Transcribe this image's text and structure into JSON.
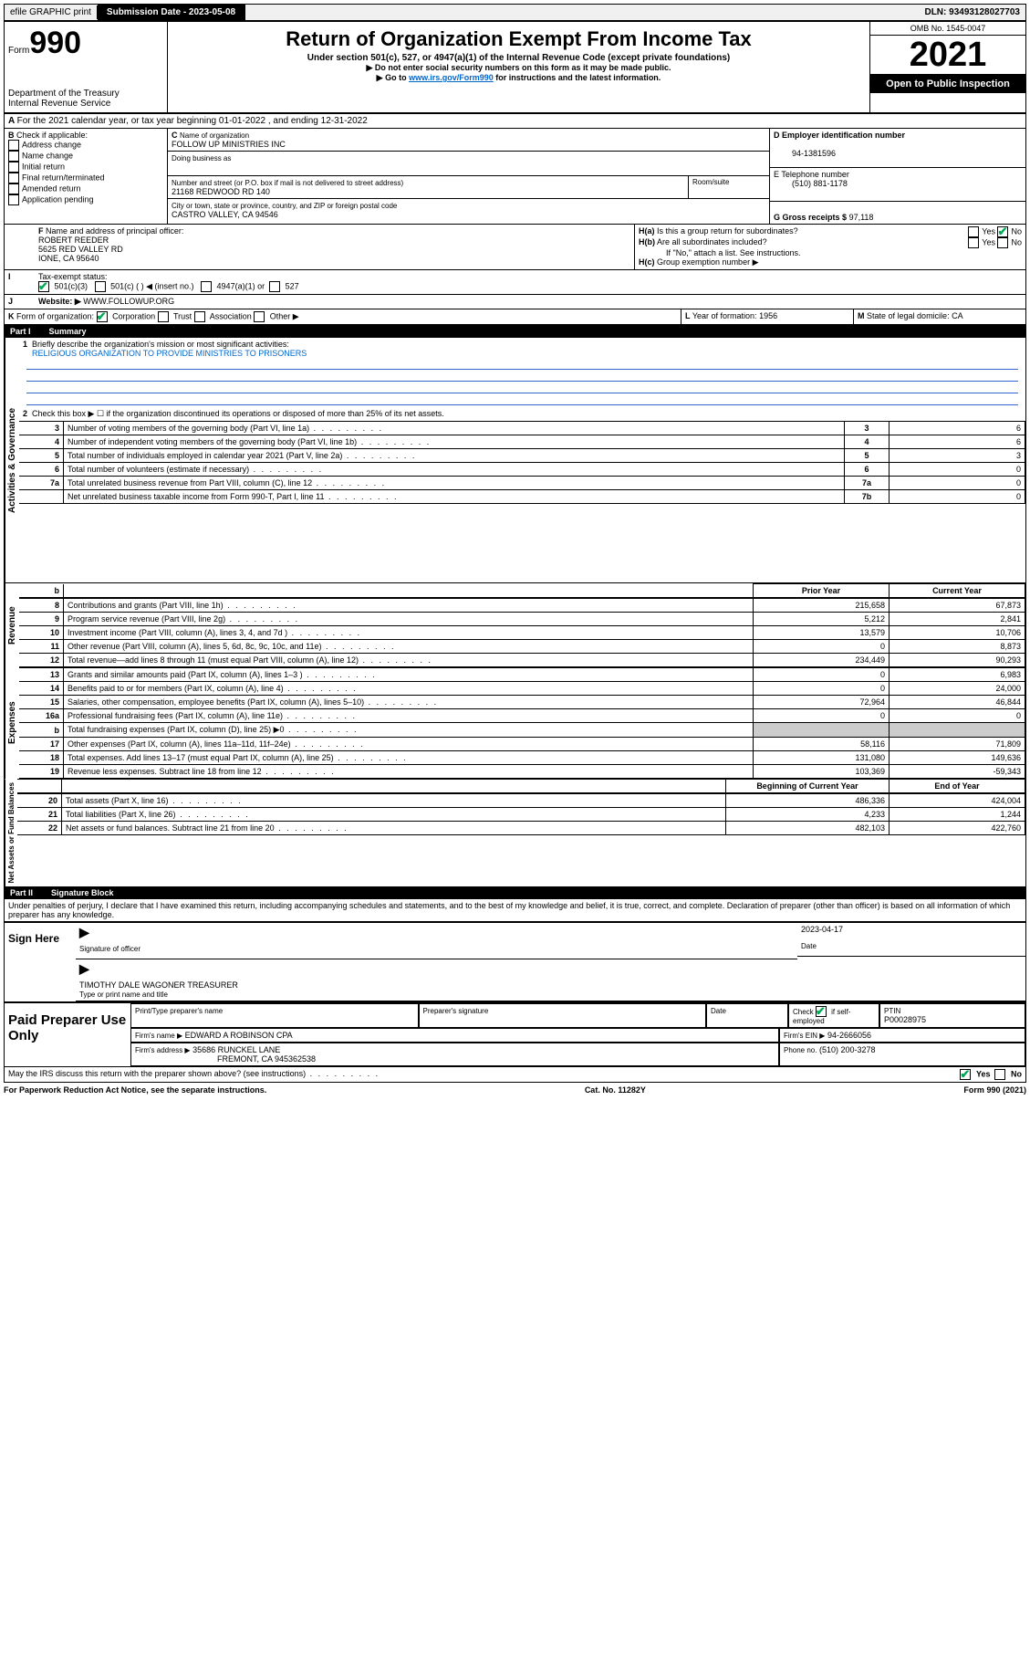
{
  "topbar": {
    "efile": "efile GRAPHIC print",
    "submission_label": "Submission Date - 2023-05-08",
    "dln": "DLN: 93493128027703"
  },
  "header": {
    "form_label": "Form",
    "form_num": "990",
    "dept": "Department of the Treasury",
    "irs": "Internal Revenue Service",
    "title": "Return of Organization Exempt From Income Tax",
    "subtitle": "Under section 501(c), 527, or 4947(a)(1) of the Internal Revenue Code (except private foundations)",
    "note1": "▶ Do not enter social security numbers on this form as it may be made public.",
    "note2_pre": "▶ Go to ",
    "note2_link": "www.irs.gov/Form990",
    "note2_post": " for instructions and the latest information.",
    "omb": "OMB No. 1545-0047",
    "year": "2021",
    "open": "Open to Public Inspection"
  },
  "lineA": "For the 2021 calendar year, or tax year beginning 01-01-2022 , and ending 12-31-2022",
  "boxB": {
    "label": "Check if applicable:",
    "opts": [
      "Address change",
      "Name change",
      "Initial return",
      "Final return/terminated",
      "Amended return",
      "Application pending"
    ]
  },
  "boxC": {
    "name_label": "Name of organization",
    "name": "FOLLOW UP MINISTRIES INC",
    "dba_label": "Doing business as",
    "street_label": "Number and street (or P.O. box if mail is not delivered to street address)",
    "room_label": "Room/suite",
    "street": "21168 REDWOOD RD 140",
    "city_label": "City or town, state or province, country, and ZIP or foreign postal code",
    "city": "CASTRO VALLEY, CA  94546"
  },
  "boxD": {
    "label": "Employer identification number",
    "val": "94-1381596"
  },
  "boxE": {
    "label": "E Telephone number",
    "val": "(510) 881-1178"
  },
  "boxG": {
    "label": "G Gross receipts $",
    "val": "97,118"
  },
  "boxF": {
    "label": "Name and address of principal officer:",
    "l1": "ROBERT REEDER",
    "l2": "5625 RED VALLEY RD",
    "l3": "IONE, CA  95640"
  },
  "boxH": {
    "ha": "Is this a group return for subordinates?",
    "hb": "Are all subordinates included?",
    "hnote": "If \"No,\" attach a list. See instructions.",
    "hc": "Group exemption number ▶"
  },
  "taxI": {
    "label": "Tax-exempt status:",
    "o1": "501(c)(3)",
    "o2": "501(c) (  ) ◀ (insert no.)",
    "o3": "4947(a)(1) or",
    "o4": "527"
  },
  "siteJ": {
    "label": "Website: ▶",
    "val": "WWW.FOLLOWUP.ORG"
  },
  "lineK": {
    "label": "Form of organization:",
    "o1": "Corporation",
    "o2": "Trust",
    "o3": "Association",
    "o4": "Other ▶"
  },
  "lineL": {
    "label": "Year of formation:",
    "val": "1956"
  },
  "lineM": {
    "label": "State of legal domicile:",
    "val": "CA"
  },
  "part1": {
    "title": "Part I",
    "name": "Summary",
    "l1": "Briefly describe the organization's mission or most significant activities:",
    "l1v": "RELIGIOUS ORGANIZATION TO PROVIDE MINISTRIES TO PRISONERS",
    "l2": "Check this box ▶ ☐ if the organization discontinued its operations or disposed of more than 25% of its net assets.",
    "rows_gov": [
      {
        "n": "3",
        "t": "Number of voting members of the governing body (Part VI, line 1a)",
        "box": "3",
        "v": "6"
      },
      {
        "n": "4",
        "t": "Number of independent voting members of the governing body (Part VI, line 1b)",
        "box": "4",
        "v": "6"
      },
      {
        "n": "5",
        "t": "Total number of individuals employed in calendar year 2021 (Part V, line 2a)",
        "box": "5",
        "v": "3"
      },
      {
        "n": "6",
        "t": "Total number of volunteers (estimate if necessary)",
        "box": "6",
        "v": "0"
      },
      {
        "n": "7a",
        "t": "Total unrelated business revenue from Part VIII, column (C), line 12",
        "box": "7a",
        "v": "0"
      },
      {
        "n": "",
        "t": "Net unrelated business taxable income from Form 990-T, Part I, line 11",
        "box": "7b",
        "v": "0"
      }
    ],
    "hdr_prior": "Prior Year",
    "hdr_curr": "Current Year",
    "rows_rev": [
      {
        "n": "8",
        "t": "Contributions and grants (Part VIII, line 1h)",
        "p": "215,658",
        "c": "67,873"
      },
      {
        "n": "9",
        "t": "Program service revenue (Part VIII, line 2g)",
        "p": "5,212",
        "c": "2,841"
      },
      {
        "n": "10",
        "t": "Investment income (Part VIII, column (A), lines 3, 4, and 7d )",
        "p": "13,579",
        "c": "10,706"
      },
      {
        "n": "11",
        "t": "Other revenue (Part VIII, column (A), lines 5, 6d, 8c, 9c, 10c, and 11e)",
        "p": "0",
        "c": "8,873"
      },
      {
        "n": "12",
        "t": "Total revenue—add lines 8 through 11 (must equal Part VIII, column (A), line 12)",
        "p": "234,449",
        "c": "90,293"
      }
    ],
    "rows_exp": [
      {
        "n": "13",
        "t": "Grants and similar amounts paid (Part IX, column (A), lines 1–3 )",
        "p": "0",
        "c": "6,983"
      },
      {
        "n": "14",
        "t": "Benefits paid to or for members (Part IX, column (A), line 4)",
        "p": "0",
        "c": "24,000"
      },
      {
        "n": "15",
        "t": "Salaries, other compensation, employee benefits (Part IX, column (A), lines 5–10)",
        "p": "72,964",
        "c": "46,844"
      },
      {
        "n": "16a",
        "t": "Professional fundraising fees (Part IX, column (A), line 11e)",
        "p": "0",
        "c": "0"
      },
      {
        "n": "b",
        "t": "Total fundraising expenses (Part IX, column (D), line 25) ▶0",
        "p": "",
        "c": "",
        "shade": true
      },
      {
        "n": "17",
        "t": "Other expenses (Part IX, column (A), lines 11a–11d, 11f–24e)",
        "p": "58,116",
        "c": "71,809"
      },
      {
        "n": "18",
        "t": "Total expenses. Add lines 13–17 (must equal Part IX, column (A), line 25)",
        "p": "131,080",
        "c": "149,636"
      },
      {
        "n": "19",
        "t": "Revenue less expenses. Subtract line 18 from line 12",
        "p": "103,369",
        "c": "-59,343"
      }
    ],
    "hdr_beg": "Beginning of Current Year",
    "hdr_end": "End of Year",
    "rows_na": [
      {
        "n": "20",
        "t": "Total assets (Part X, line 16)",
        "p": "486,336",
        "c": "424,004"
      },
      {
        "n": "21",
        "t": "Total liabilities (Part X, line 26)",
        "p": "4,233",
        "c": "1,244"
      },
      {
        "n": "22",
        "t": "Net assets or fund balances. Subtract line 21 from line 20",
        "p": "482,103",
        "c": "422,760"
      }
    ],
    "vgov": "Activities & Governance",
    "vrev": "Revenue",
    "vexp": "Expenses",
    "vna": "Net Assets or Fund Balances"
  },
  "part2": {
    "title": "Part II",
    "name": "Signature Block",
    "decl": "Under penalties of perjury, I declare that I have examined this return, including accompanying schedules and statements, and to the best of my knowledge and belief, it is true, correct, and complete. Declaration of preparer (other than officer) is based on all information of which preparer has any knowledge.",
    "sign_here": "Sign Here",
    "sig_officer": "Signature of officer",
    "date_l": "Date",
    "date_v": "2023-04-17",
    "name_title": "TIMOTHY DALE WAGONER  TREASURER",
    "name_title_l": "Type or print name and title",
    "paid": "Paid Preparer Use Only",
    "pp_name_l": "Print/Type preparer's name",
    "pp_sig_l": "Preparer's signature",
    "pp_date_l": "Date",
    "pp_check": "Check ☑ if self-employed",
    "pp_ptin_l": "PTIN",
    "pp_ptin": "P00028975",
    "firm_name_l": "Firm's name    ▶",
    "firm_name": "EDWARD A ROBINSON CPA",
    "firm_ein_l": "Firm's EIN ▶",
    "firm_ein": "94-2666056",
    "firm_addr_l": "Firm's address ▶",
    "firm_addr1": "35686 RUNCKEL LANE",
    "firm_addr2": "FREMONT, CA  945362538",
    "phone_l": "Phone no.",
    "phone": "(510) 200-3278",
    "discuss": "May the IRS discuss this return with the preparer shown above? (see instructions)",
    "yes": "Yes",
    "no": "No"
  },
  "footer": {
    "pra": "For Paperwork Reduction Act Notice, see the separate instructions.",
    "cat": "Cat. No. 11282Y",
    "form": "Form 990 (2021)"
  },
  "yn": {
    "yes": "Yes",
    "no": "No"
  }
}
